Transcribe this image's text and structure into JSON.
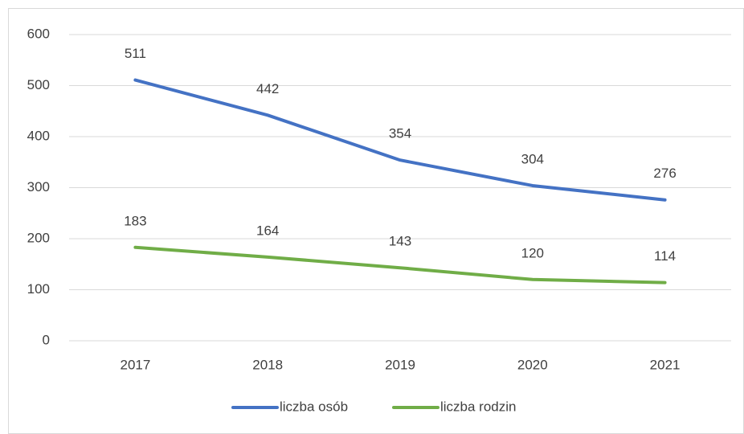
{
  "chart_data": {
    "type": "line",
    "categories": [
      "2017",
      "2018",
      "2019",
      "2020",
      "2021"
    ],
    "series": [
      {
        "name": "liczba osób",
        "color": "#4472c4",
        "values": [
          511,
          442,
          354,
          304,
          276
        ]
      },
      {
        "name": "liczba rodzin",
        "color": "#70ad47",
        "values": [
          183,
          164,
          143,
          120,
          114
        ]
      }
    ],
    "ylim": [
      0,
      600
    ],
    "yticks": [
      0,
      100,
      200,
      300,
      400,
      500,
      600
    ],
    "grid": true,
    "legend": "bottom",
    "data_labels": true
  }
}
